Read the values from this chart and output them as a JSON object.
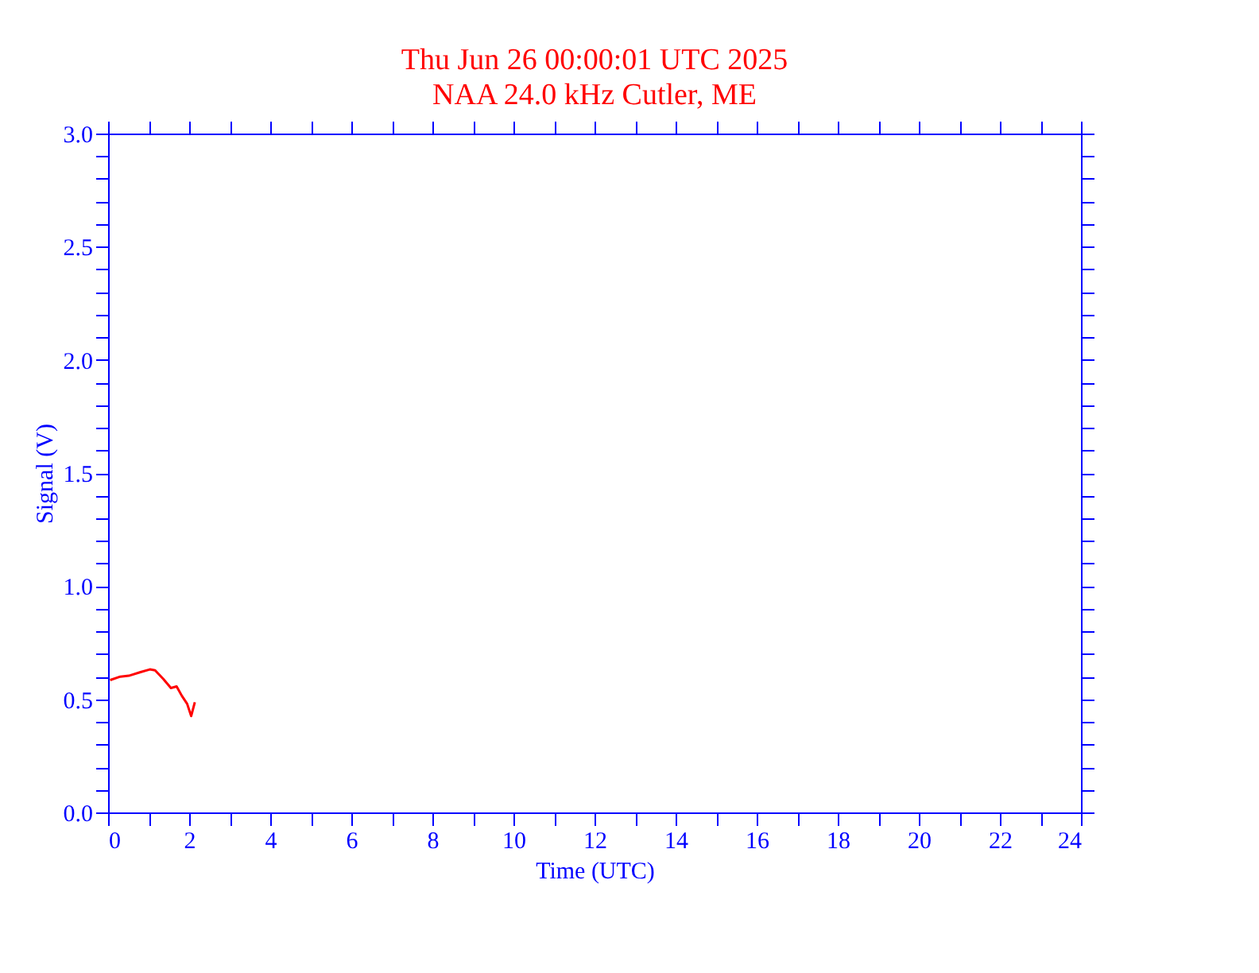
{
  "chart_data": {
    "type": "line",
    "title": "Thu Jun 26 00:00:01 UTC 2025",
    "subtitle": "NAA 24.0 kHz Cutler, ME",
    "xlabel": "Time (UTC)",
    "ylabel": "Signal (V)",
    "x": [
      0.05,
      0.3,
      0.51,
      0.8,
      1.03,
      1.16,
      1.36,
      1.55,
      1.69,
      1.82,
      1.95,
      2.05,
      2.14
    ],
    "series": [
      {
        "color": "#ff0000",
        "values": [
          0.585,
          0.6,
          0.604,
          0.62,
          0.632,
          0.628,
          0.59,
          0.55,
          0.557,
          0.515,
          0.48,
          0.426,
          0.487
        ]
      }
    ],
    "xlim": [
      0,
      24
    ],
    "ylim": [
      0,
      3.0
    ],
    "xticks": [
      0,
      {
        "value": 1,
        "label": null
      },
      2,
      {
        "value": 3,
        "label": null
      },
      4,
      {
        "value": 5,
        "label": null
      },
      6,
      {
        "value": 7,
        "label": null
      },
      8,
      {
        "value": 9,
        "label": null
      },
      10,
      {
        "value": 11,
        "label": null
      },
      12,
      {
        "value": 13,
        "label": null
      },
      14,
      {
        "value": 15,
        "label": null
      },
      16,
      {
        "value": 17,
        "label": null
      },
      18,
      {
        "value": 19,
        "label": null
      },
      20,
      {
        "value": 21,
        "label": null
      },
      22,
      {
        "value": 23,
        "label": null
      },
      24
    ],
    "yticks": [
      {
        "value": 0,
        "label": "0.0"
      },
      {
        "value": 0.1,
        "label": null
      },
      {
        "value": 0.2,
        "label": null
      },
      {
        "value": 0.3,
        "label": null
      },
      {
        "value": 0.4,
        "label": null
      },
      0.5,
      {
        "value": 0.6,
        "label": null
      },
      {
        "value": 0.7,
        "label": null
      },
      {
        "value": 0.8,
        "label": null
      },
      {
        "value": 0.9,
        "label": null
      },
      {
        "value": 1.0,
        "label": "1.0"
      },
      {
        "value": 1.1,
        "label": null
      },
      {
        "value": 1.2,
        "label": null
      },
      {
        "value": 1.3,
        "label": null
      },
      {
        "value": 1.4,
        "label": null
      },
      1.5,
      {
        "value": 1.6,
        "label": null
      },
      {
        "value": 1.7,
        "label": null
      },
      {
        "value": 1.8,
        "label": null
      },
      {
        "value": 1.9,
        "label": null
      },
      {
        "value": 2.0,
        "label": "2.0"
      },
      {
        "value": 2.1,
        "label": null
      },
      {
        "value": 2.2,
        "label": null
      },
      {
        "value": 2.3,
        "label": null
      },
      {
        "value": 2.4,
        "label": null
      },
      2.5,
      {
        "value": 2.6,
        "label": null
      },
      {
        "value": 2.7,
        "label": null
      },
      {
        "value": 2.8,
        "label": null
      },
      {
        "value": 2.9,
        "label": null
      },
      {
        "value": 3.0,
        "label": "3.0"
      }
    ],
    "grid": false,
    "marker": "none",
    "line_style": "solid"
  }
}
